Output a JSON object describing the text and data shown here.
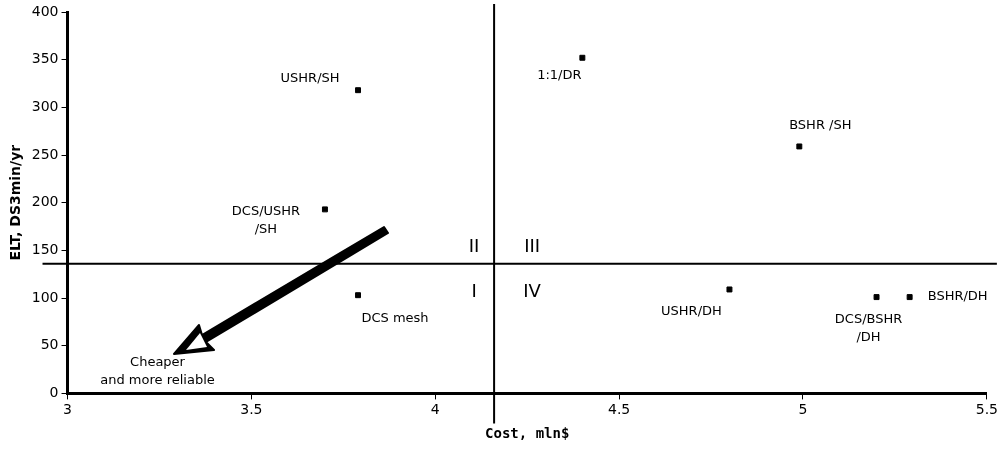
{
  "chart_data": {
    "type": "scatter",
    "xlabel": "Cost, mln$",
    "ylabel": "ELT, DS3min/yr",
    "x": [
      3.79,
      4.4,
      4.99,
      3.7,
      3.79,
      4.8,
      5.2,
      5.29
    ],
    "series": [
      {
        "color": "#000000",
        "values": [
          318,
          352,
          259,
          193,
          103,
          109,
          101,
          101
        ]
      }
    ],
    "xlim": [
      3,
      5.5
    ],
    "xticks": [
      3,
      3.5,
      4,
      4.5,
      5,
      5.5
    ],
    "ylim": [
      0,
      400
    ],
    "yticks": [
      0,
      50,
      100,
      150,
      200,
      250,
      300,
      350,
      400
    ],
    "grid": false,
    "legend": false,
    "marker": "square",
    "ref_lines": [
      {
        "axis": "x",
        "value": 4.16,
        "color": "#000000"
      },
      {
        "axis": "y",
        "value": 136,
        "color": "#000000"
      }
    ],
    "annotations": [
      {
        "text": "USHR/SH",
        "x": 3.79,
        "y": 318
      },
      {
        "text": "1:1/DR",
        "x": 4.4,
        "y": 352
      },
      {
        "text": "BSHR /SH",
        "x": 4.99,
        "y": 259
      },
      {
        "text": "DCS/USHR\n/SH",
        "x": 3.7,
        "y": 193
      },
      {
        "text": "DCS mesh",
        "x": 3.79,
        "y": 103
      },
      {
        "text": "USHR/DH",
        "x": 4.8,
        "y": 109
      },
      {
        "text": "DCS/BSHR\n/DH",
        "x": 5.2,
        "y": 101
      },
      {
        "text": "BSHR/DH",
        "x": 5.29,
        "y": 101
      },
      "I",
      "II",
      "III",
      "IV",
      "Cheaper\nand more reliable"
    ]
  }
}
